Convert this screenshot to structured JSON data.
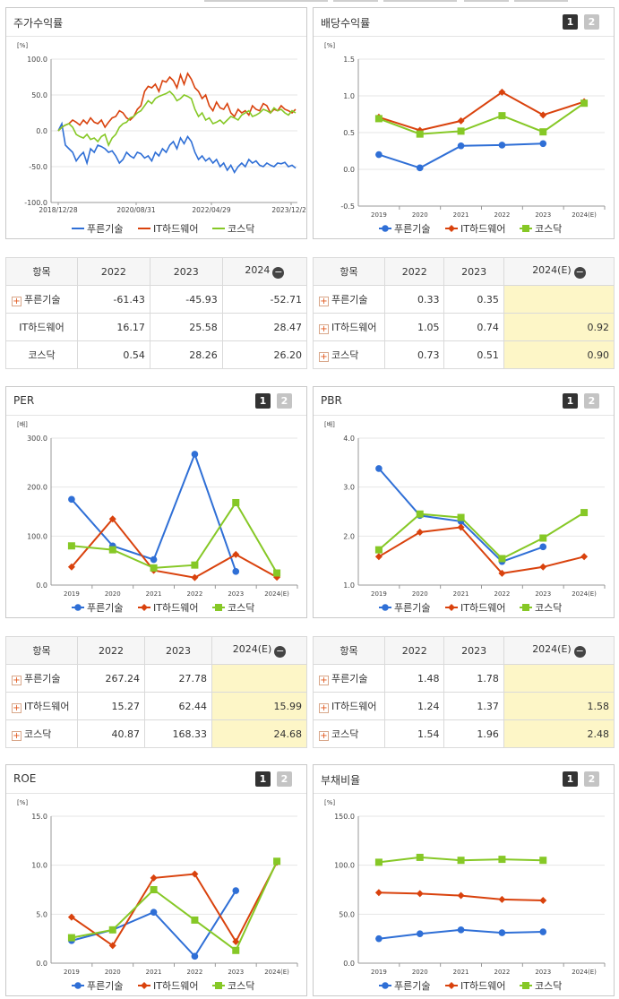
{
  "colors": {
    "blue": "#2f6fd6",
    "red": "#d9420d",
    "green": "#86c826"
  },
  "series_names": [
    "푸른기술",
    "IT하드웨어",
    "코스닥"
  ],
  "icons": {
    "page1": "1",
    "page2": "2",
    "expand": "+",
    "collapse": "−"
  },
  "charts": [
    {
      "id": "ret",
      "title": "주가수익률",
      "unit": "[%]",
      "pager": false,
      "chart_data": {
        "type": "line",
        "yticks": [
          "100.0",
          "50.0",
          "0.0",
          "-50.0",
          "-100.0"
        ],
        "ylim": [
          -100,
          100
        ],
        "xticks": [
          "2018/12/28",
          "2020/08/31",
          "2022/04/29",
          "2023/12/28"
        ],
        "series": [
          {
            "name": "푸른기술",
            "values": [
              0,
              10,
              -20,
              -25,
              -30,
              -42,
              -35,
              -30,
              -45,
              -25,
              -30,
              -20,
              -22,
              -25,
              -30,
              -28,
              -35,
              -45,
              -40,
              -30,
              -35,
              -38,
              -30,
              -32,
              -38,
              -35,
              -42,
              -30,
              -35,
              -25,
              -30,
              -20,
              -15,
              -25,
              -10,
              -18,
              -8,
              -15,
              -30,
              -40,
              -35,
              -42,
              -38,
              -45,
              -40,
              -50,
              -45,
              -55,
              -48,
              -58,
              -50,
              -45,
              -50,
              -40,
              -45,
              -42,
              -48,
              -50,
              -45,
              -48,
              -50,
              -45,
              -46,
              -44,
              -50,
              -48,
              -52
            ]
          },
          {
            "name": "IT하드웨어",
            "values": [
              0,
              5,
              8,
              10,
              15,
              12,
              8,
              15,
              10,
              18,
              12,
              10,
              15,
              5,
              12,
              18,
              20,
              28,
              25,
              18,
              15,
              20,
              30,
              35,
              55,
              62,
              60,
              65,
              55,
              70,
              68,
              75,
              70,
              60,
              78,
              65,
              80,
              72,
              60,
              55,
              45,
              50,
              35,
              28,
              40,
              32,
              30,
              38,
              25,
              20,
              30,
              25,
              28,
              22,
              35,
              30,
              28,
              38,
              35,
              25,
              30,
              28,
              35,
              30,
              28,
              25,
              30
            ]
          },
          {
            "name": "코스닥",
            "values": [
              0,
              5,
              8,
              10,
              5,
              -5,
              -8,
              -10,
              -5,
              -12,
              -10,
              -15,
              -8,
              -5,
              -20,
              -10,
              -5,
              5,
              10,
              12,
              18,
              20,
              25,
              28,
              35,
              42,
              38,
              45,
              48,
              50,
              52,
              55,
              50,
              42,
              45,
              50,
              48,
              45,
              30,
              20,
              25,
              15,
              18,
              10,
              12,
              15,
              10,
              15,
              20,
              18,
              15,
              22,
              25,
              28,
              20,
              22,
              25,
              30,
              28,
              25,
              32,
              28,
              30,
              25,
              22,
              28,
              25
            ]
          }
        ]
      }
    },
    {
      "id": "div",
      "title": "배당수익률",
      "unit": "[%]",
      "pager": true,
      "chart_data": {
        "type": "line",
        "yticks": [
          "1.5",
          "1.0",
          "0.5",
          "0.0",
          "-0.5"
        ],
        "ylim": [
          -0.5,
          1.5
        ],
        "categories": [
          "2019",
          "2020",
          "2021",
          "2022",
          "2023",
          "2024(E)"
        ],
        "series": [
          {
            "name": "푸른기술",
            "values": [
              0.2,
              0.02,
              0.32,
              0.33,
              0.35,
              null
            ]
          },
          {
            "name": "IT하드웨어",
            "values": [
              0.71,
              0.53,
              0.66,
              1.05,
              0.74,
              0.92
            ]
          },
          {
            "name": "코스닥",
            "values": [
              0.69,
              0.48,
              0.52,
              0.73,
              0.51,
              0.9
            ]
          }
        ]
      }
    },
    {
      "id": "per",
      "title": "PER",
      "unit": "[배]",
      "pager": true,
      "chart_data": {
        "type": "line",
        "yticks": [
          "300.0",
          "200.0",
          "100.0",
          "0.0"
        ],
        "ylim": [
          0,
          300
        ],
        "categories": [
          "2019",
          "2020",
          "2021",
          "2022",
          "2023",
          "2024(E)"
        ],
        "series": [
          {
            "name": "푸른기술",
            "values": [
              175,
              80,
              52,
              267.24,
              27.78,
              null
            ]
          },
          {
            "name": "IT하드웨어",
            "values": [
              37,
              135,
              30,
              15.27,
              62.44,
              15.99
            ]
          },
          {
            "name": "코스닥",
            "values": [
              80,
              72,
              35,
              40.87,
              168.33,
              24.68
            ]
          }
        ]
      }
    },
    {
      "id": "pbr",
      "title": "PBR",
      "unit": "[배]",
      "pager": true,
      "chart_data": {
        "type": "line",
        "yticks": [
          "4.0",
          "3.0",
          "2.0",
          "1.0"
        ],
        "ylim": [
          1,
          4
        ],
        "categories": [
          "2019",
          "2020",
          "2021",
          "2022",
          "2023",
          "2024(E)"
        ],
        "series": [
          {
            "name": "푸른기술",
            "values": [
              3.38,
              2.42,
              2.3,
              1.48,
              1.78,
              null
            ]
          },
          {
            "name": "IT하드웨어",
            "values": [
              1.58,
              2.08,
              2.18,
              1.24,
              1.37,
              1.58
            ]
          },
          {
            "name": "코스닥",
            "values": [
              1.72,
              2.45,
              2.38,
              1.54,
              1.96,
              2.48
            ]
          }
        ]
      }
    },
    {
      "id": "roe",
      "title": "ROE",
      "unit": "[%]",
      "pager": true,
      "chart_data": {
        "type": "line",
        "yticks": [
          "15.0",
          "10.0",
          "5.0",
          "0.0"
        ],
        "ylim": [
          0,
          15
        ],
        "categories": [
          "2019",
          "2020",
          "2021",
          "2022",
          "2023",
          "2024(E)"
        ],
        "series": [
          {
            "name": "푸른기술",
            "values": [
              2.3,
              3.4,
              5.2,
              0.7,
              7.4,
              null
            ]
          },
          {
            "name": "IT하드웨어",
            "values": [
              4.7,
              1.8,
              8.7,
              9.1,
              2.2,
              10.3
            ]
          },
          {
            "name": "코스닥",
            "values": [
              2.6,
              3.4,
              7.5,
              4.4,
              1.3,
              10.4
            ]
          }
        ]
      }
    },
    {
      "id": "debt",
      "title": "부채비율",
      "unit": "[%]",
      "pager": true,
      "chart_data": {
        "type": "line",
        "yticks": [
          "150.0",
          "100.0",
          "50.0",
          "0.0"
        ],
        "ylim": [
          0,
          150
        ],
        "categories": [
          "2019",
          "2020",
          "2021",
          "2022",
          "2023",
          "2024(E)"
        ],
        "series": [
          {
            "name": "푸른기술",
            "values": [
              25,
              30,
              34,
              31,
              32,
              null
            ]
          },
          {
            "name": "IT하드웨어",
            "values": [
              72,
              71,
              69,
              65,
              64,
              null
            ]
          },
          {
            "name": "코스닥",
            "values": [
              103,
              108,
              105,
              106,
              105,
              null
            ]
          }
        ]
      }
    }
  ],
  "tables": [
    {
      "id": "t-ret",
      "head": [
        "항목",
        "2022",
        "2023",
        "2024"
      ],
      "hl": false,
      "rows": [
        [
          "푸른기술",
          "-61.43",
          "-45.93",
          "-52.71"
        ],
        [
          "IT하드웨어",
          "16.17",
          "25.58",
          "28.47"
        ],
        [
          "코스닥",
          "0.54",
          "28.26",
          "26.20"
        ]
      ]
    },
    {
      "id": "t-div",
      "head": [
        "항목",
        "2022",
        "2023",
        "2024(E)"
      ],
      "hl": true,
      "rows": [
        [
          "푸른기술",
          "0.33",
          "0.35",
          ""
        ],
        [
          "IT하드웨어",
          "1.05",
          "0.74",
          "0.92"
        ],
        [
          "코스닥",
          "0.73",
          "0.51",
          "0.90"
        ]
      ]
    },
    {
      "id": "t-per",
      "head": [
        "항목",
        "2022",
        "2023",
        "2024(E)"
      ],
      "hl": true,
      "rows": [
        [
          "푸른기술",
          "267.24",
          "27.78",
          ""
        ],
        [
          "IT하드웨어",
          "15.27",
          "62.44",
          "15.99"
        ],
        [
          "코스닥",
          "40.87",
          "168.33",
          "24.68"
        ]
      ]
    },
    {
      "id": "t-pbr",
      "head": [
        "항목",
        "2022",
        "2023",
        "2024(E)"
      ],
      "hl": true,
      "rows": [
        [
          "푸른기술",
          "1.48",
          "1.78",
          ""
        ],
        [
          "IT하드웨어",
          "1.24",
          "1.37",
          "1.58"
        ],
        [
          "코스닥",
          "1.54",
          "1.96",
          "2.48"
        ]
      ]
    }
  ]
}
